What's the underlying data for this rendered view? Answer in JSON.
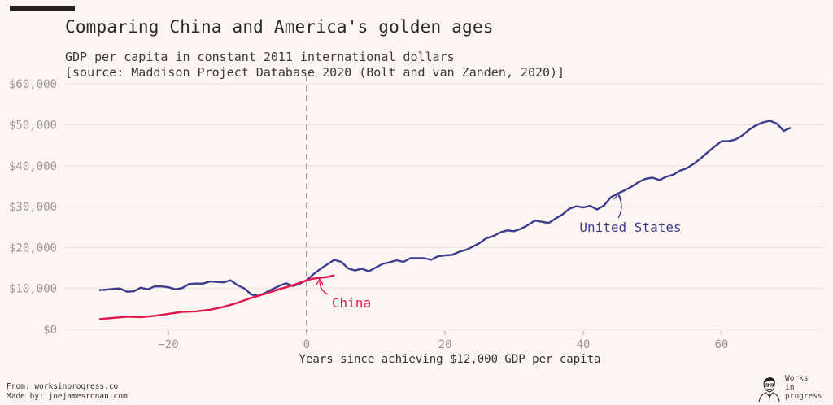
{
  "header": {
    "title": "Comparing China and America's golden ages",
    "subtitle_line1": "GDP per capita in constant 2011 international dollars",
    "subtitle_line2": "[source: Maddison Project Database 2020 (Bolt and van Zanden, 2020)]"
  },
  "footer": {
    "from": "From: worksinprogress.co",
    "made_by": "Made by: joejamesronan.com"
  },
  "logo": {
    "line1": "Works",
    "line2": "in",
    "line3": "progress"
  },
  "chart_data": {
    "type": "line",
    "title": "Comparing China and America's golden ages",
    "subtitle": "GDP per capita in constant 2011 international dollars [source: Maddison Project Database 2020 (Bolt and van Zanden, 2020)]",
    "xlabel": "Years since achieving $12,000 GDP per capita",
    "ylabel": "",
    "xlim": [
      -34,
      75
    ],
    "ylim": [
      0,
      60000
    ],
    "xticks": [
      -20,
      0,
      20,
      40,
      60
    ],
    "xtick_labels": [
      "−20",
      "0",
      "20",
      "40",
      "60"
    ],
    "yticks": [
      0,
      10000,
      20000,
      30000,
      40000,
      50000,
      60000
    ],
    "ytick_labels": [
      "$0",
      "$10,000",
      "$20,000",
      "$30,000",
      "$40,000",
      "$50,000",
      "$60,000"
    ],
    "grid": "horizontal",
    "reference_line": {
      "x": 0,
      "style": "dashed"
    },
    "series": [
      {
        "name": "United States",
        "color": "#3d3d8f",
        "label_position": "below-right of line near x=45",
        "x": [
          -30,
          -29,
          -28,
          -27,
          -26,
          -25,
          -24,
          -23,
          -22,
          -21,
          -20,
          -19,
          -18,
          -17,
          -16,
          -15,
          -14,
          -13,
          -12,
          -11,
          -10,
          -9,
          -8,
          -7,
          -6,
          -5,
          -4,
          -3,
          -2,
          -1,
          0,
          1,
          2,
          3,
          4,
          5,
          6,
          7,
          8,
          9,
          10,
          11,
          12,
          13,
          14,
          15,
          16,
          17,
          18,
          19,
          20,
          21,
          22,
          23,
          24,
          25,
          26,
          27,
          28,
          29,
          30,
          31,
          32,
          33,
          34,
          35,
          36,
          37,
          38,
          39,
          40,
          41,
          42,
          43,
          44,
          45,
          46,
          47,
          48,
          49,
          50,
          51,
          52,
          53,
          54,
          55,
          56,
          57,
          58,
          59,
          60,
          61,
          62,
          63,
          64,
          65,
          66,
          67,
          68,
          69,
          70
        ],
        "values": [
          9600,
          9700,
          9900,
          10000,
          9200,
          9300,
          10200,
          9800,
          10500,
          10500,
          10300,
          9800,
          10100,
          11100,
          11200,
          11200,
          11700,
          11600,
          11500,
          12000,
          10800,
          10000,
          8500,
          8200,
          8900,
          9800,
          10600,
          11300,
          10600,
          11200,
          12000,
          13500,
          14800,
          15900,
          17000,
          16500,
          14900,
          14400,
          14800,
          14200,
          15100,
          16000,
          16400,
          16900,
          16500,
          17400,
          17400,
          17400,
          17000,
          17900,
          18100,
          18200,
          18900,
          19400,
          20200,
          21100,
          22300,
          22800,
          23700,
          24200,
          24000,
          24600,
          25500,
          26600,
          26300,
          26000,
          27100,
          28100,
          29500,
          30100,
          29800,
          30200,
          29300,
          30300,
          32300,
          33200,
          34000,
          34900,
          36000,
          36800,
          37100,
          36500,
          37300,
          37800,
          38800,
          39400,
          40500,
          41800,
          43300,
          44700,
          46000,
          46000,
          46400,
          47400,
          48800,
          49900,
          50600,
          51000,
          50300,
          48500,
          49300
        ]
      },
      {
        "name": "China",
        "color": "#e0184a",
        "label_position": "below-right of line end",
        "x": [
          -30,
          -28,
          -26,
          -24,
          -22,
          -20,
          -18,
          -16,
          -14,
          -12,
          -10,
          -8,
          -6,
          -4,
          -2,
          0,
          1,
          2,
          3,
          4
        ],
        "values": [
          2500,
          2800,
          3100,
          3000,
          3300,
          3800,
          4300,
          4400,
          4800,
          5500,
          6500,
          7700,
          8700,
          9800,
          10800,
          12000,
          12400,
          12600,
          12800,
          13200
        ]
      }
    ],
    "annotations": [
      {
        "text": "United States",
        "series": "United States",
        "color": "#3d3d8f"
      },
      {
        "text": "China",
        "series": "China",
        "color": "#e0184a"
      }
    ]
  }
}
